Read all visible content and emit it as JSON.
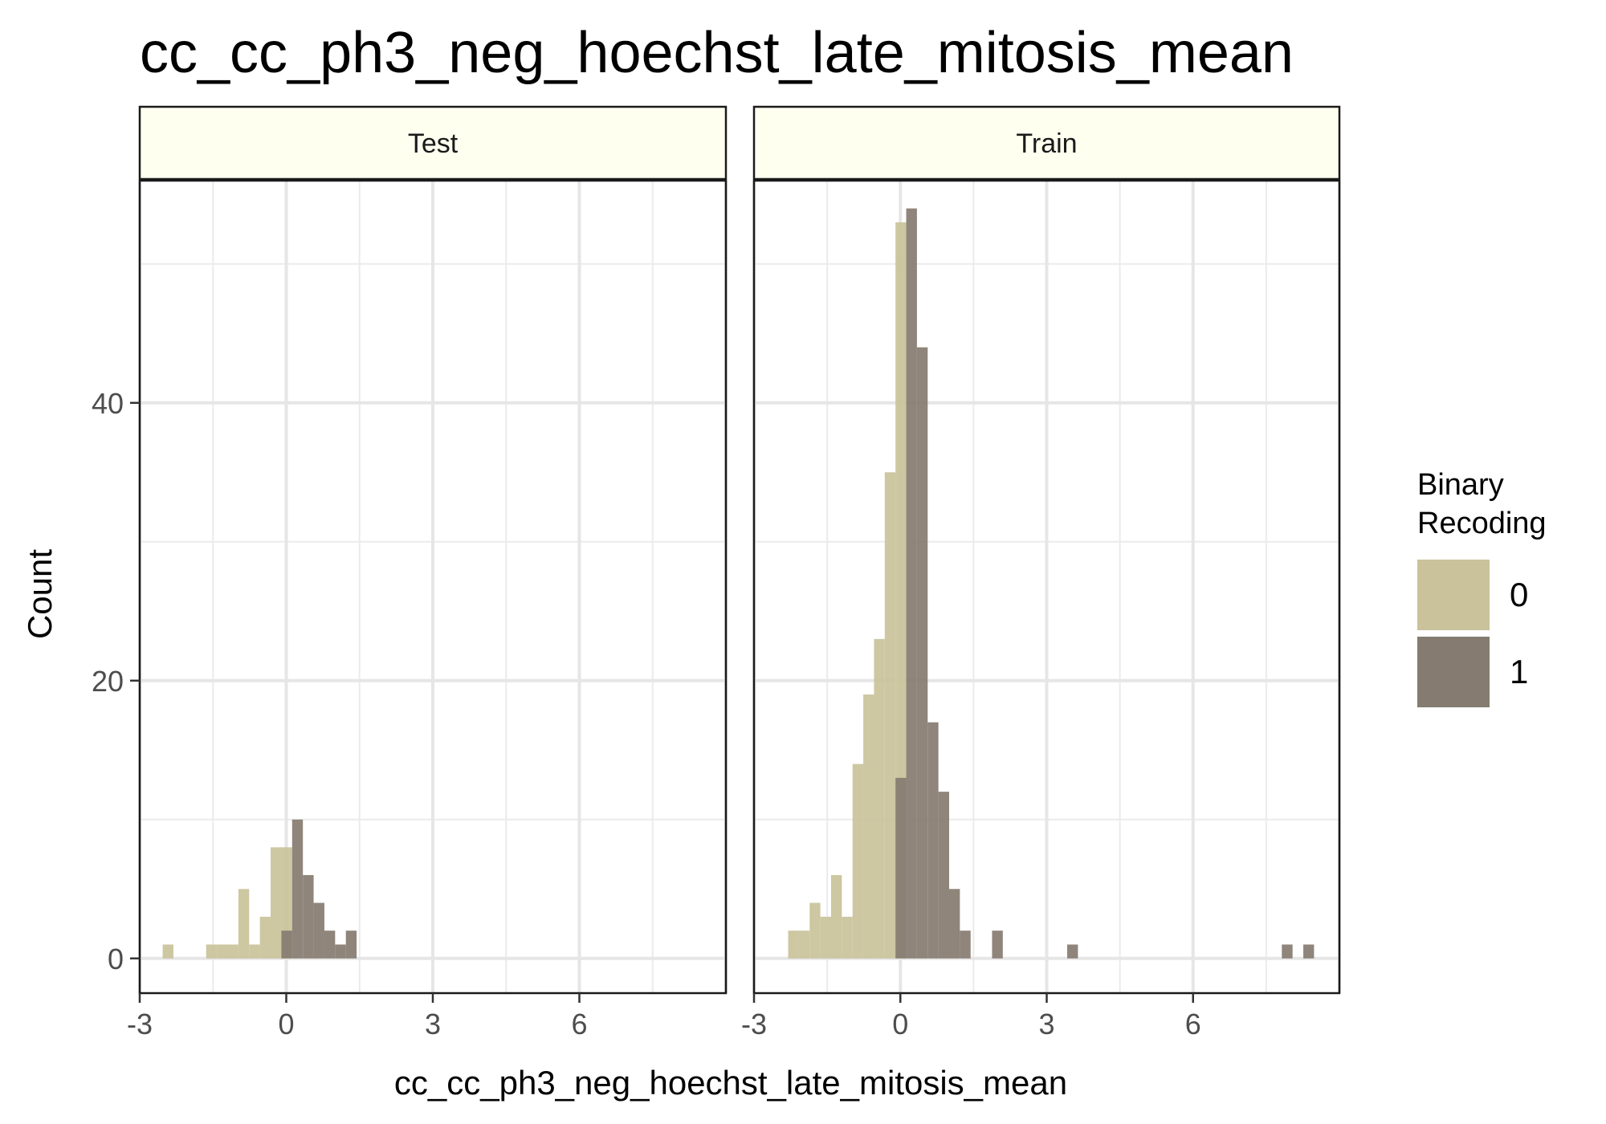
{
  "chart_data": {
    "type": "bar",
    "title": "cc_cc_ph3_neg_hoechst_late_mitosis_mean",
    "xlabel": "cc_cc_ph3_neg_hoechst_late_mitosis_mean",
    "ylabel": "Count",
    "xlim": [
      -3,
      9
    ],
    "ylim": [
      -2.5,
      56
    ],
    "x_ticks": [
      -3,
      0,
      3,
      6
    ],
    "x_tick_labels": [
      "-3",
      "0",
      "3",
      "6"
    ],
    "y_ticks": [
      0,
      20,
      40
    ],
    "y_tick_labels": [
      "0",
      "20",
      "40"
    ],
    "bin_width": 0.22,
    "grid": true,
    "legend": {
      "title": [
        "Binary",
        "Recoding"
      ],
      "position": "right",
      "entries": [
        {
          "label": "0",
          "color": "#c9c29a"
        },
        {
          "label": "1",
          "color": "#857b70"
        }
      ]
    },
    "panels": [
      {
        "strip": "Test",
        "series": [
          {
            "name": "0",
            "color": "#c9c29a",
            "bins": [
              {
                "x": -2.53,
                "y": 1
              },
              {
                "x": -1.64,
                "y": 1
              },
              {
                "x": -1.42,
                "y": 1
              },
              {
                "x": -1.2,
                "y": 1
              },
              {
                "x": -0.98,
                "y": 5
              },
              {
                "x": -0.76,
                "y": 1
              },
              {
                "x": -0.54,
                "y": 3
              },
              {
                "x": -0.32,
                "y": 8
              },
              {
                "x": -0.1,
                "y": 8
              }
            ]
          },
          {
            "name": "1",
            "color": "#857b70",
            "bins": [
              {
                "x": -0.1,
                "y": 2
              },
              {
                "x": 0.12,
                "y": 10
              },
              {
                "x": 0.34,
                "y": 6
              },
              {
                "x": 0.56,
                "y": 4
              },
              {
                "x": 0.78,
                "y": 2
              },
              {
                "x": 1.0,
                "y": 1
              },
              {
                "x": 1.22,
                "y": 2
              }
            ]
          }
        ]
      },
      {
        "strip": "Train",
        "series": [
          {
            "name": "0",
            "color": "#c9c29a",
            "bins": [
              {
                "x": -2.3,
                "y": 2
              },
              {
                "x": -2.08,
                "y": 2
              },
              {
                "x": -1.86,
                "y": 4
              },
              {
                "x": -1.64,
                "y": 3
              },
              {
                "x": -1.42,
                "y": 6
              },
              {
                "x": -1.2,
                "y": 3
              },
              {
                "x": -0.98,
                "y": 14
              },
              {
                "x": -0.76,
                "y": 19
              },
              {
                "x": -0.54,
                "y": 23
              },
              {
                "x": -0.32,
                "y": 35
              },
              {
                "x": -0.1,
                "y": 53
              }
            ]
          },
          {
            "name": "1",
            "color": "#857b70",
            "bins": [
              {
                "x": -0.1,
                "y": 13
              },
              {
                "x": 0.12,
                "y": 54
              },
              {
                "x": 0.34,
                "y": 44
              },
              {
                "x": 0.56,
                "y": 17
              },
              {
                "x": 0.78,
                "y": 12
              },
              {
                "x": 1.0,
                "y": 5
              },
              {
                "x": 1.22,
                "y": 2
              },
              {
                "x": 1.88,
                "y": 2
              },
              {
                "x": 3.42,
                "y": 1
              },
              {
                "x": 7.82,
                "y": 1
              },
              {
                "x": 8.26,
                "y": 1
              }
            ]
          }
        ]
      }
    ]
  }
}
